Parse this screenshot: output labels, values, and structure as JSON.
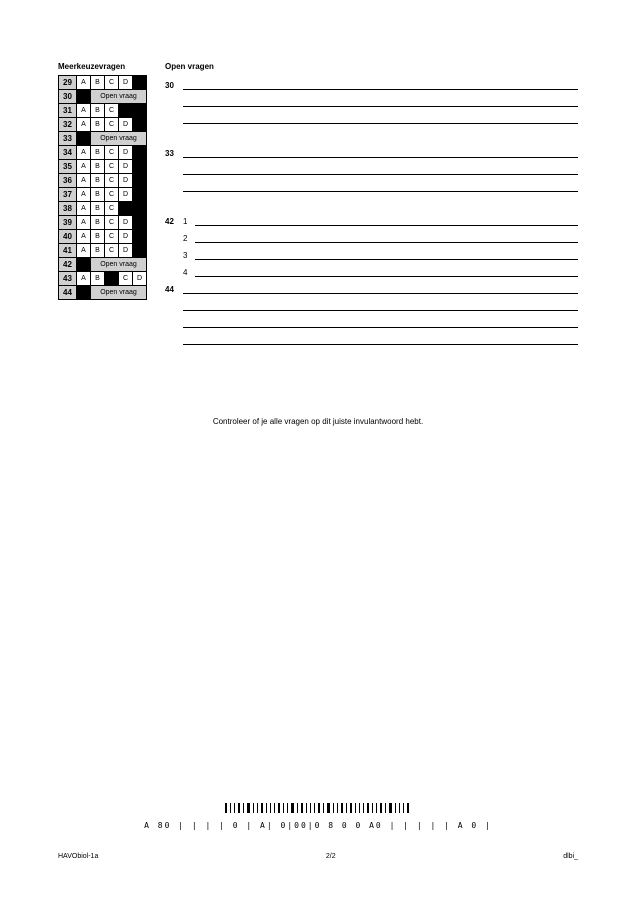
{
  "headers": {
    "mc": "Meerkeuzevragen",
    "open": "Open vragen"
  },
  "options": [
    "A",
    "B",
    "C",
    "D"
  ],
  "open_vraag_label": "Open vraag",
  "mc_rows": [
    {
      "num": "29",
      "type": "4"
    },
    {
      "num": "30",
      "type": "open"
    },
    {
      "num": "31",
      "type": "3"
    },
    {
      "num": "32",
      "type": "4"
    },
    {
      "num": "33",
      "type": "open"
    },
    {
      "num": "34",
      "type": "4"
    },
    {
      "num": "35",
      "type": "4"
    },
    {
      "num": "36",
      "type": "4"
    },
    {
      "num": "37",
      "type": "4"
    },
    {
      "num": "38",
      "type": "3"
    },
    {
      "num": "39",
      "type": "4"
    },
    {
      "num": "40",
      "type": "4"
    },
    {
      "num": "41",
      "type": "4"
    },
    {
      "num": "42",
      "type": "open"
    },
    {
      "num": "43",
      "type": "4s"
    },
    {
      "num": "44",
      "type": "open"
    }
  ],
  "open_rows": [
    {
      "label": "30",
      "line": true
    },
    {
      "label": "",
      "line": true
    },
    {
      "label": "",
      "line": true
    },
    {
      "label": "",
      "line": false
    },
    {
      "label": "33",
      "line": true
    },
    {
      "label": "",
      "line": true
    },
    {
      "label": "",
      "line": true
    },
    {
      "label": "",
      "line": false
    },
    {
      "label": "42",
      "sub": "1",
      "line": true
    },
    {
      "label": "",
      "sub": "2",
      "line": true
    },
    {
      "label": "",
      "sub": "3",
      "line": true
    },
    {
      "label": "",
      "sub": "4",
      "line": true
    },
    {
      "label": "44",
      "line": true
    },
    {
      "label": "",
      "line": true
    },
    {
      "label": "",
      "line": true
    },
    {
      "label": "",
      "line": true
    }
  ],
  "note_text": "Controleer of je alle vragen op dit juiste invulantwoord hebt.",
  "barcode_text": "A  80 | | | | 0 | A| 0|00|0 8 0 0 A0 | | | | | A  0 |",
  "footer": {
    "left": "HAVObiol-1a",
    "center": "2/2",
    "right": "dlbi_"
  }
}
